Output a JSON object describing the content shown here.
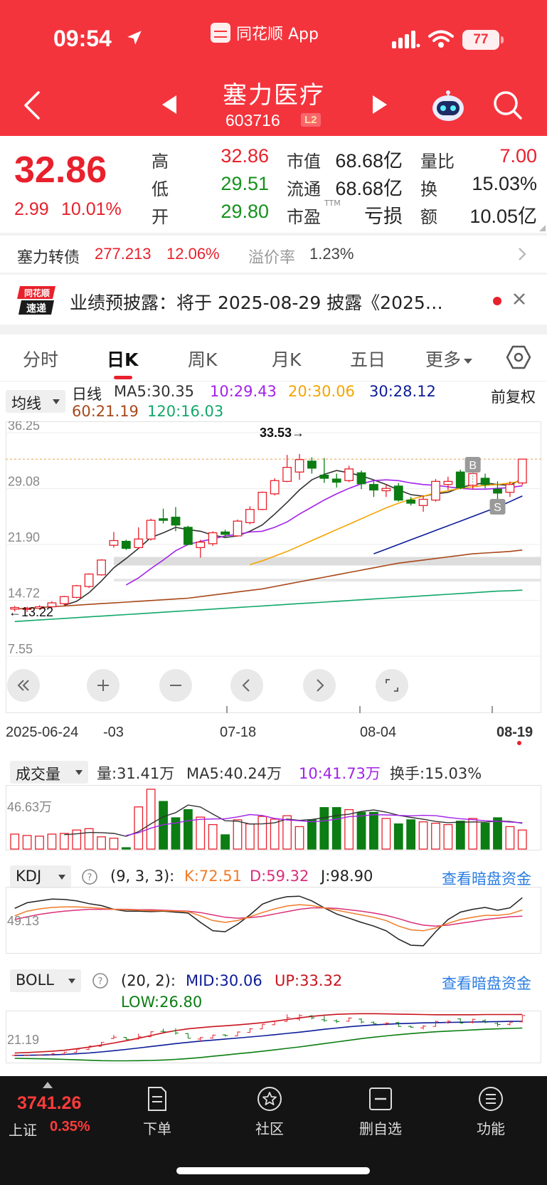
{
  "status_bar": {
    "time": "09:54",
    "battery": "77",
    "app_name": "同花顺 App"
  },
  "header": {
    "stock_name": "塞力医疗",
    "stock_code": "603716",
    "level_badge": "L2"
  },
  "quote": {
    "last": "32.86",
    "change": "2.99",
    "change_pct": "10.01%",
    "high_label": "高",
    "high": "32.86",
    "low_label": "低",
    "low": "29.51",
    "open_label": "开",
    "open": "29.80",
    "mktcap_label": "市值",
    "mktcap": "68.68亿",
    "float_label": "流通",
    "float": "68.68亿",
    "pe_label": "市盈",
    "pe_suffix": "TTM",
    "pe": "亏损",
    "volratio_label": "量比",
    "volratio": "7.00",
    "turnover_label": "换",
    "turnover": "15.03%",
    "amount_label": "额",
    "amount": "10.05亿"
  },
  "bond": {
    "name": "塞力转债",
    "price": "277.213",
    "pct": "12.06%",
    "premium_label": "溢价率",
    "premium": "1.23%"
  },
  "notice": {
    "text": "业绩预披露：将于 2025-08-29 披露《2025…"
  },
  "tabs": [
    "分时",
    "日K",
    "周K",
    "月K",
    "五日",
    "更多"
  ],
  "indicators": {
    "ma": {
      "selector": "均线",
      "period": "日线",
      "adjust": "前复权",
      "ma5": "MA5:30.35",
      "ma10": "10:29.43",
      "ma20": "20:30.06",
      "ma30": "30:28.12",
      "ma60": "60:21.19",
      "ma120": "120:16.03"
    },
    "volume": {
      "selector": "成交量",
      "vol": "量:31.41万",
      "ma5": "MA5:40.24万",
      "ma10": "10:41.73万",
      "turnover": "换手:15.03%",
      "axis": "46.63万"
    },
    "kdj": {
      "selector": "KDJ",
      "params": "(9, 3, 3):",
      "k": "K:72.51",
      "d": "D:59.32",
      "j": "J:98.90",
      "axis": "49.13",
      "link": "查看暗盘资金"
    },
    "boll": {
      "selector": "BOLL",
      "params": "(20, 2):",
      "mid": "MID:30.06",
      "up": "UP:33.32",
      "low": "LOW:26.80",
      "axis": "21.19",
      "link": "查看暗盘资金"
    }
  },
  "chart_data": {
    "type": "candlestick",
    "y_ticks": [
      "36.25",
      "29.08",
      "21.90",
      "14.72",
      "7.55"
    ],
    "max_label": "33.53→",
    "min_label": "←13.22",
    "x_labels": [
      "2025-06-24",
      "-03",
      "07-18",
      "08-04",
      "08-19"
    ],
    "markers": [
      "B",
      "S"
    ],
    "candles": [
      {
        "o": 13.6,
        "c": 13.8,
        "h": 14.0,
        "l": 13.3
      },
      {
        "o": 13.6,
        "c": 13.7,
        "h": 13.9,
        "l": 13.22
      },
      {
        "o": 13.7,
        "c": 13.9,
        "h": 14.1,
        "l": 13.5
      },
      {
        "o": 13.9,
        "c": 14.4,
        "h": 14.6,
        "l": 13.8
      },
      {
        "o": 14.3,
        "c": 15.2,
        "h": 15.3,
        "l": 14.1
      },
      {
        "o": 15.1,
        "c": 16.6,
        "h": 16.7,
        "l": 15.0
      },
      {
        "o": 16.5,
        "c": 18.1,
        "h": 18.2,
        "l": 16.3
      },
      {
        "o": 18.0,
        "c": 19.9,
        "h": 20.0,
        "l": 17.9
      },
      {
        "o": 21.8,
        "c": 22.4,
        "h": 23.5,
        "l": 21.5
      },
      {
        "o": 22.3,
        "c": 21.4,
        "h": 22.5,
        "l": 21.2
      },
      {
        "o": 21.5,
        "c": 22.6,
        "h": 24.1,
        "l": 21.3
      },
      {
        "o": 22.6,
        "c": 25.0,
        "h": 25.2,
        "l": 22.4
      },
      {
        "o": 25.2,
        "c": 25.0,
        "h": 26.5,
        "l": 24.6
      },
      {
        "o": 25.4,
        "c": 24.4,
        "h": 26.7,
        "l": 23.6
      },
      {
        "o": 24.1,
        "c": 21.9,
        "h": 24.3,
        "l": 21.8
      },
      {
        "o": 21.5,
        "c": 22.2,
        "h": 22.5,
        "l": 20.2
      },
      {
        "o": 22.0,
        "c": 23.4,
        "h": 23.6,
        "l": 21.7
      },
      {
        "o": 23.5,
        "c": 23.2,
        "h": 23.8,
        "l": 22.7
      },
      {
        "o": 23.0,
        "c": 24.9,
        "h": 25.1,
        "l": 22.9
      },
      {
        "o": 24.7,
        "c": 26.4,
        "h": 26.8,
        "l": 24.5
      },
      {
        "o": 26.4,
        "c": 28.6,
        "h": 28.7,
        "l": 26.3
      },
      {
        "o": 28.4,
        "c": 30.1,
        "h": 30.4,
        "l": 28.2
      },
      {
        "o": 30.0,
        "c": 31.8,
        "h": 33.4,
        "l": 29.9
      },
      {
        "o": 31.2,
        "c": 32.8,
        "h": 33.53,
        "l": 30.2
      },
      {
        "o": 32.6,
        "c": 31.7,
        "h": 33.1,
        "l": 31.0
      },
      {
        "o": 30.8,
        "c": 30.4,
        "h": 33.0,
        "l": 29.8
      },
      {
        "o": 30.3,
        "c": 29.9,
        "h": 31.0,
        "l": 29.2
      },
      {
        "o": 30.1,
        "c": 31.6,
        "h": 32.0,
        "l": 29.9
      },
      {
        "o": 31.1,
        "c": 29.7,
        "h": 31.4,
        "l": 29.0
      },
      {
        "o": 29.6,
        "c": 28.9,
        "h": 30.0,
        "l": 28.0
      },
      {
        "o": 28.8,
        "c": 29.1,
        "h": 29.6,
        "l": 28.0
      },
      {
        "o": 29.4,
        "c": 27.6,
        "h": 29.8,
        "l": 27.4
      },
      {
        "o": 27.6,
        "c": 27.2,
        "h": 28.0,
        "l": 26.9
      },
      {
        "o": 26.9,
        "c": 27.7,
        "h": 28.2,
        "l": 26.1
      },
      {
        "o": 27.6,
        "c": 30.0,
        "h": 30.3,
        "l": 27.4
      },
      {
        "o": 29.6,
        "c": 30.0,
        "h": 30.6,
        "l": 28.9
      },
      {
        "o": 31.2,
        "c": 29.2,
        "h": 31.5,
        "l": 29.0
      },
      {
        "o": 29.5,
        "c": 31.0,
        "h": 31.3,
        "l": 29.0
      },
      {
        "o": 30.4,
        "c": 29.6,
        "h": 31.0,
        "l": 29.1
      },
      {
        "o": 29.0,
        "c": 28.5,
        "h": 30.0,
        "l": 27.5
      },
      {
        "o": 28.6,
        "c": 29.6,
        "h": 30.0,
        "l": 28.0
      },
      {
        "o": 29.8,
        "c": 32.86,
        "h": 32.86,
        "l": 29.51
      }
    ],
    "ma_lines": {
      "ma5": {
        "color": "#333333",
        "values": [
          null,
          null,
          null,
          null,
          14.1,
          14.6,
          15.7,
          17.2,
          18.9,
          20.1,
          21.4,
          22.8,
          23.4,
          24.1,
          23.8,
          23.6,
          23.1,
          22.8,
          23.0,
          23.6,
          24.4,
          25.8,
          27.3,
          28.9,
          30.2,
          30.9,
          31.4,
          31.1,
          30.7,
          30.2,
          29.6,
          28.9,
          28.3,
          28.1,
          28.4,
          28.6,
          29.2,
          29.6,
          29.8,
          29.6,
          29.5,
          30.35
        ]
      },
      "ma10": {
        "color": "#a222e8",
        "values": [
          null,
          null,
          null,
          null,
          null,
          null,
          null,
          null,
          null,
          16.7,
          17.6,
          18.8,
          19.9,
          21.1,
          21.9,
          22.3,
          22.6,
          23.0,
          23.2,
          23.5,
          23.6,
          24.1,
          24.8,
          25.8,
          26.7,
          27.6,
          28.4,
          29.1,
          29.7,
          30.1,
          30.2,
          30.1,
          29.8,
          29.6,
          29.5,
          29.3,
          29.1,
          29.0,
          29.0,
          29.1,
          29.2,
          29.43
        ]
      },
      "ma20": {
        "color": "#f5a400",
        "values": [
          null,
          null,
          null,
          null,
          null,
          null,
          null,
          null,
          null,
          null,
          null,
          null,
          null,
          null,
          null,
          null,
          null,
          null,
          null,
          19.3,
          19.8,
          20.4,
          21.0,
          21.7,
          22.4,
          23.1,
          23.8,
          24.5,
          25.2,
          25.9,
          26.6,
          27.2,
          27.7,
          28.1,
          28.5,
          28.8,
          29.1,
          29.3,
          29.5,
          29.6,
          29.8,
          30.06
        ]
      },
      "ma30": {
        "color": "#0c1c99",
        "values": [
          null,
          null,
          null,
          null,
          null,
          null,
          null,
          null,
          null,
          null,
          null,
          null,
          null,
          null,
          null,
          null,
          null,
          null,
          null,
          null,
          null,
          null,
          null,
          null,
          null,
          null,
          null,
          null,
          null,
          20.7,
          21.3,
          21.9,
          22.5,
          23.1,
          23.7,
          24.3,
          24.9,
          25.5,
          26.1,
          26.7,
          27.4,
          28.12
        ]
      },
      "ma60": {
        "color": "#a8481a",
        "values": [
          13.6,
          13.7,
          13.8,
          13.9,
          14.0,
          14.1,
          14.2,
          14.3,
          14.4,
          14.5,
          14.6,
          14.7,
          14.8,
          14.9,
          15.0,
          15.2,
          15.4,
          15.6,
          15.8,
          16.0,
          16.2,
          16.5,
          16.8,
          17.1,
          17.4,
          17.7,
          18.0,
          18.3,
          18.6,
          18.9,
          19.2,
          19.5,
          19.7,
          19.9,
          20.1,
          20.3,
          20.5,
          20.7,
          20.8,
          20.9,
          21.0,
          21.19
        ]
      },
      "ma120": {
        "color": "#12a86a",
        "values": [
          12.0,
          12.1,
          12.2,
          12.3,
          12.4,
          12.5,
          12.6,
          12.7,
          12.8,
          12.9,
          13.0,
          13.1,
          13.2,
          13.3,
          13.4,
          13.5,
          13.6,
          13.7,
          13.8,
          13.9,
          14.0,
          14.1,
          14.2,
          14.3,
          14.4,
          14.5,
          14.6,
          14.7,
          14.8,
          14.9,
          15.0,
          15.1,
          15.2,
          15.3,
          15.4,
          15.5,
          15.6,
          15.7,
          15.8,
          15.9,
          15.95,
          16.03
        ]
      }
    }
  },
  "volume_bars": [
    22,
    20,
    19,
    22,
    23,
    28,
    30,
    18,
    16,
    2,
    62,
    88,
    70,
    46,
    58,
    47,
    36,
    21,
    43,
    37,
    48,
    44,
    49,
    33,
    43,
    61,
    61,
    58,
    54,
    54,
    45,
    37,
    43,
    40,
    38,
    36,
    41,
    45,
    38,
    46,
    33,
    28
  ],
  "kdj_lines": {
    "k": [
      60,
      70,
      75,
      78,
      79,
      79,
      78,
      76,
      74,
      73,
      72,
      71,
      71,
      70,
      69,
      60,
      50,
      46,
      50,
      58,
      67,
      75,
      81,
      84,
      82,
      77,
      72,
      67,
      62,
      57,
      50,
      38,
      30,
      28,
      34,
      44,
      52,
      57,
      61,
      61,
      64,
      72.51
    ],
    "d": [
      52,
      58,
      63,
      67,
      70,
      72,
      74,
      74,
      74,
      74,
      73,
      73,
      72,
      71,
      70,
      67,
      62,
      57,
      55,
      56,
      59,
      64,
      69,
      74,
      77,
      77,
      76,
      73,
      70,
      66,
      61,
      54,
      46,
      40,
      38,
      40,
      44,
      48,
      52,
      55,
      58,
      59.32
    ],
    "j": [
      76,
      88,
      92,
      96,
      95,
      92,
      86,
      82,
      74,
      70,
      70,
      69,
      70,
      68,
      66,
      46,
      28,
      26,
      42,
      62,
      85,
      95,
      101,
      102,
      92,
      77,
      64,
      55,
      46,
      38,
      28,
      10,
      -3,
      -4,
      26,
      52,
      68,
      74,
      78,
      72,
      77,
      98.9
    ]
  },
  "boll_lines": {
    "up": [
      14.8,
      15.0,
      15.3,
      15.6,
      16.1,
      16.8,
      17.6,
      18.6,
      19.6,
      20.7,
      21.9,
      23.2,
      24.5,
      25.6,
      26.4,
      27.0,
      27.5,
      27.9,
      28.3,
      28.8,
      29.4,
      30.1,
      30.9,
      31.7,
      32.4,
      33.0,
      33.4,
      33.6,
      33.7,
      33.7,
      33.6,
      33.5,
      33.4,
      33.3,
      33.2,
      33.2,
      33.2,
      33.2,
      33.3,
      33.3,
      33.3,
      33.32
    ],
    "mid": [
      13.6,
      13.7,
      13.8,
      13.9,
      14.1,
      14.4,
      14.8,
      15.3,
      15.9,
      16.5,
      17.2,
      17.9,
      18.6,
      19.3,
      19.9,
      20.5,
      21.0,
      21.5,
      22.0,
      22.5,
      23.0,
      23.6,
      24.2,
      24.8,
      25.5,
      26.2,
      26.8,
      27.4,
      27.9,
      28.3,
      28.6,
      28.9,
      29.1,
      29.3,
      29.4,
      29.5,
      29.6,
      29.7,
      29.8,
      29.9,
      30.0,
      30.06
    ],
    "low": [
      12.2,
      12.1,
      12.0,
      11.9,
      11.7,
      11.5,
      11.3,
      11.1,
      11.0,
      11.0,
      11.1,
      11.2,
      11.4,
      11.7,
      12.1,
      12.6,
      13.2,
      13.8,
      14.4,
      15.0,
      15.6,
      16.3,
      17.0,
      17.7,
      18.5,
      19.3,
      20.1,
      20.9,
      21.7,
      22.4,
      23.0,
      23.6,
      24.1,
      24.6,
      25.0,
      25.3,
      25.6,
      25.9,
      26.2,
      26.4,
      26.6,
      26.8
    ]
  },
  "bottom_bar": {
    "index_value": "3741.26",
    "index_name": "上证",
    "index_pct": "0.35%",
    "nav": [
      "下单",
      "社区",
      "删自选",
      "功能"
    ]
  },
  "colors": {
    "brand": "#f4343d",
    "up": "#e8212c",
    "down": "#0b7d12",
    "link": "#2a7de1"
  }
}
